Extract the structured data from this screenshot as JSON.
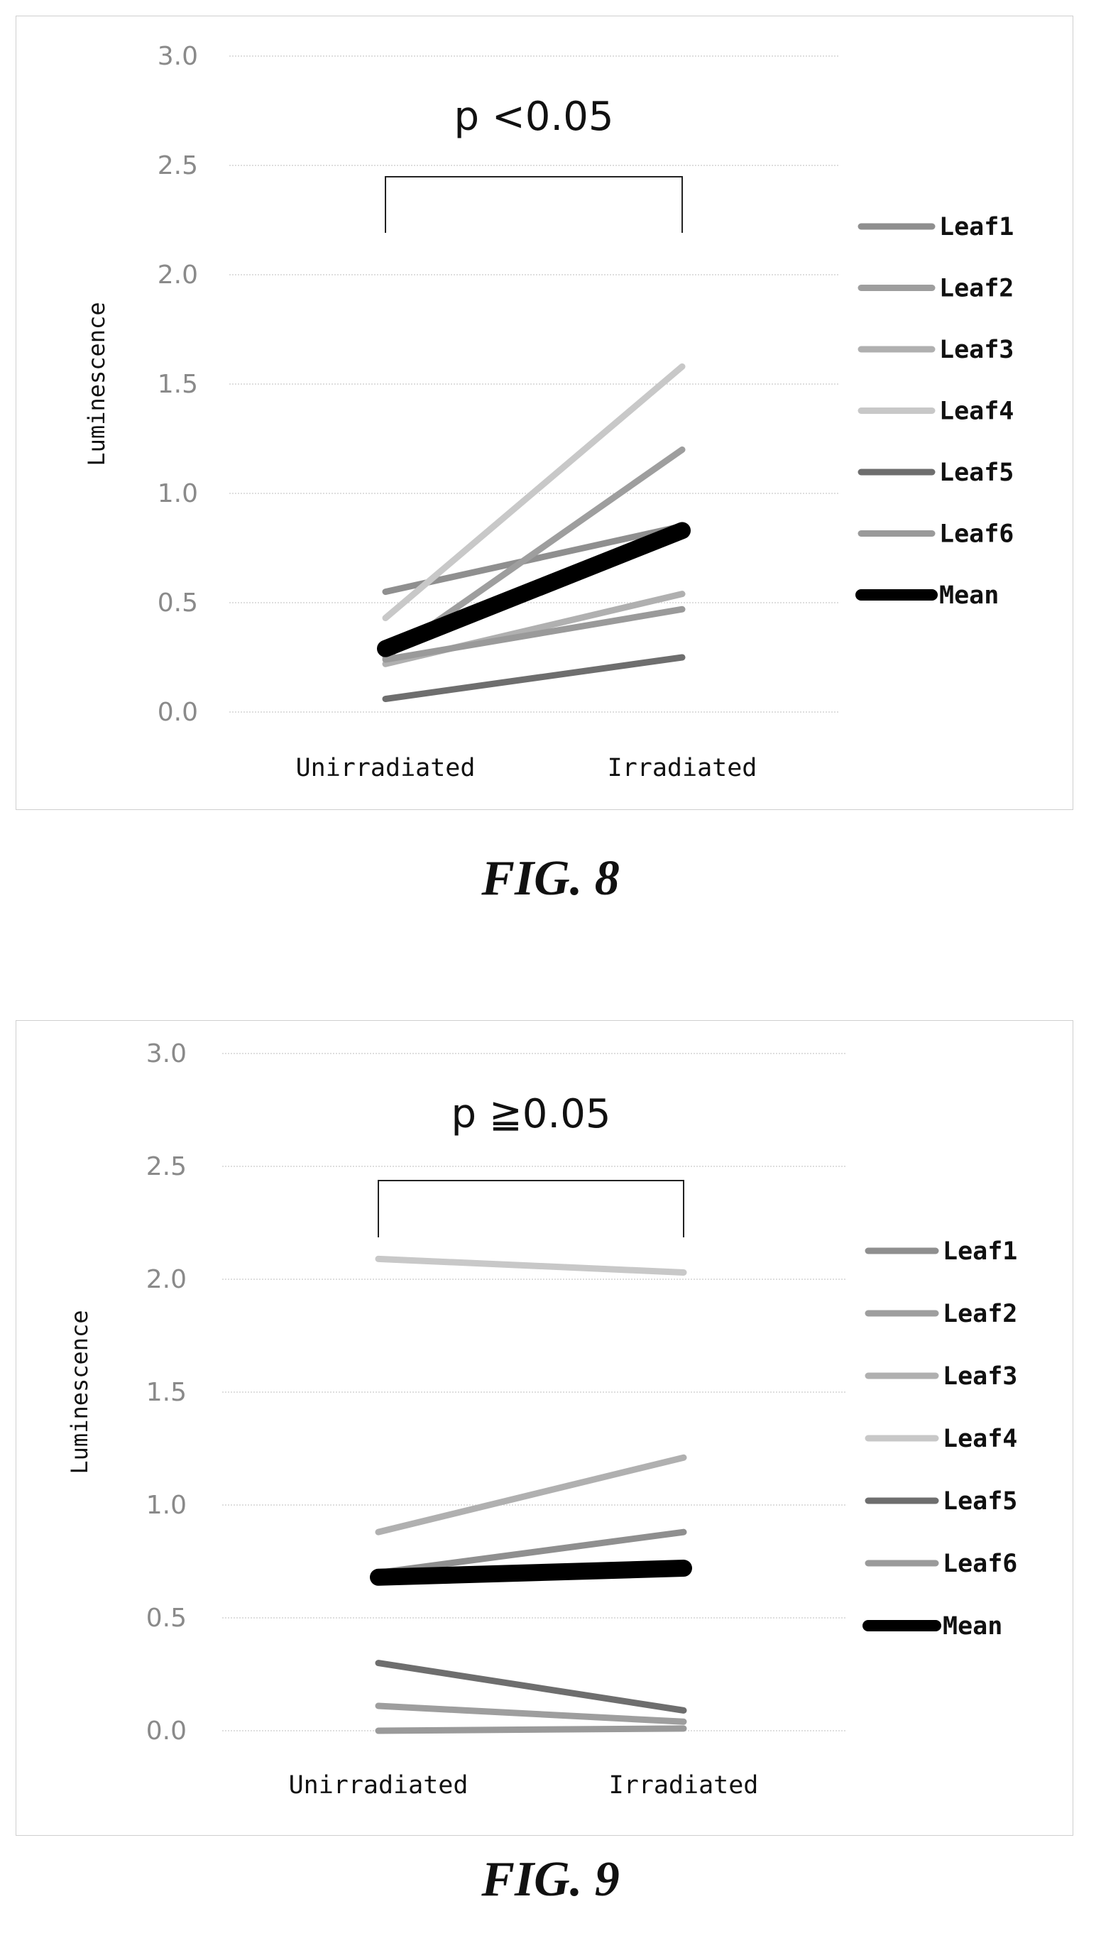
{
  "chart_data": [
    {
      "type": "line",
      "title": "",
      "annotation": "p <0.05",
      "xlabel": "",
      "ylabel": "Luminescence",
      "categories": [
        "Unirradiated",
        "Irradiated"
      ],
      "ylim": [
        0,
        3
      ],
      "yticks": [
        "0.0",
        "0.5",
        "1.0",
        "1.5",
        "2.0",
        "2.5",
        "3.0"
      ],
      "grid": true,
      "legend": "right",
      "series": [
        {
          "name": "Leaf1",
          "values": [
            0.55,
            0.85
          ],
          "color": "#8f8f8f"
        },
        {
          "name": "Leaf2",
          "values": [
            0.25,
            1.2
          ],
          "color": "#9e9e9e"
        },
        {
          "name": "Leaf3",
          "values": [
            0.22,
            0.54
          ],
          "color": "#b0b0b0"
        },
        {
          "name": "Leaf4",
          "values": [
            0.43,
            1.58
          ],
          "color": "#c8c8c8"
        },
        {
          "name": "Leaf5",
          "values": [
            0.06,
            0.25
          ],
          "color": "#6e6e6e"
        },
        {
          "name": "Leaf6",
          "values": [
            0.24,
            0.47
          ],
          "color": "#9a9a9a"
        },
        {
          "name": "Mean",
          "values": [
            0.29,
            0.83
          ],
          "color": "#000000"
        }
      ]
    },
    {
      "type": "line",
      "title": "",
      "annotation": "p ≧0.05",
      "xlabel": "",
      "ylabel": "Luminescence",
      "categories": [
        "Unirradiated",
        "Irradiated"
      ],
      "ylim": [
        0,
        3
      ],
      "yticks": [
        "0.0",
        "0.5",
        "1.0",
        "1.5",
        "2.0",
        "2.5",
        "3.0"
      ],
      "grid": true,
      "legend": "right",
      "series": [
        {
          "name": "Leaf1",
          "values": [
            0.7,
            0.88
          ],
          "color": "#8f8f8f"
        },
        {
          "name": "Leaf2",
          "values": [
            0.11,
            0.04
          ],
          "color": "#9e9e9e"
        },
        {
          "name": "Leaf3",
          "values": [
            0.88,
            1.21
          ],
          "color": "#b0b0b0"
        },
        {
          "name": "Leaf4",
          "values": [
            2.09,
            2.03
          ],
          "color": "#c8c8c8"
        },
        {
          "name": "Leaf5",
          "values": [
            0.3,
            0.09
          ],
          "color": "#6e6e6e"
        },
        {
          "name": "Leaf6",
          "values": [
            0.0,
            0.01
          ],
          "color": "#9a9a9a"
        },
        {
          "name": "Mean",
          "values": [
            0.68,
            0.72
          ],
          "color": "#000000"
        }
      ]
    }
  ],
  "captions": [
    "FIG. 8",
    "FIG. 9"
  ]
}
